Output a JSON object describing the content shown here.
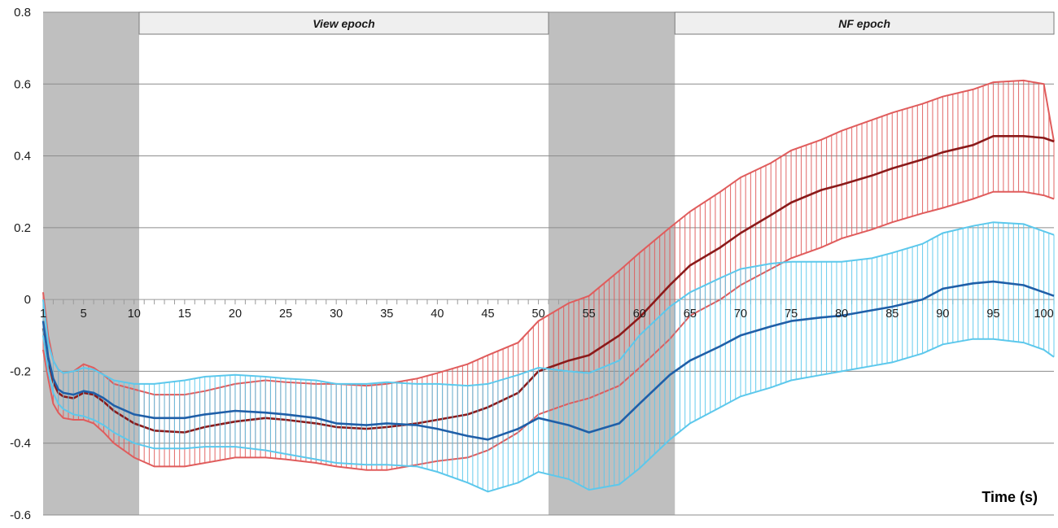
{
  "chart_data": {
    "type": "line",
    "title": "",
    "xlabel": "Time (s)",
    "ylabel": "",
    "xlim": [
      1,
      101
    ],
    "ylim": [
      -0.6,
      0.8
    ],
    "y_ticks": [
      "0.8",
      "0.6",
      "0.4",
      "0.2",
      "0",
      "-0.2",
      "-0.4",
      "-0.6"
    ],
    "x_ticks": [
      "1",
      "5",
      "10",
      "15",
      "20",
      "25",
      "30",
      "35",
      "40",
      "45",
      "50",
      "55",
      "60",
      "65",
      "70",
      "75",
      "80",
      "85",
      "90",
      "95",
      "100"
    ],
    "grid": "horizontal",
    "shaded_rest_periods": [
      [
        1,
        10.5
      ],
      [
        51,
        63.5
      ]
    ],
    "epochs": [
      {
        "label": "View epoch",
        "start": 10.5,
        "end": 51
      },
      {
        "label": "NF epoch",
        "start": 63.5,
        "end": 101
      }
    ],
    "error_bars": "vertical, every 0.5 s",
    "series": [
      {
        "color": "#8b1a1a",
        "band_color": "#e05c5c",
        "x": [
          1,
          1.5,
          2,
          2.5,
          3,
          4,
          5,
          6,
          7,
          8,
          10,
          12,
          15,
          17,
          20,
          23,
          25,
          28,
          30,
          33,
          35,
          38,
          40,
          43,
          45,
          48,
          50,
          53,
          55,
          58,
          60,
          63,
          65,
          68,
          70,
          73,
          75,
          78,
          80,
          83,
          85,
          88,
          90,
          93,
          95,
          98,
          100,
          101
        ],
        "mean": [
          -0.08,
          -0.17,
          -0.23,
          -0.26,
          -0.27,
          -0.275,
          -0.26,
          -0.265,
          -0.285,
          -0.31,
          -0.345,
          -0.365,
          -0.37,
          -0.355,
          -0.34,
          -0.33,
          -0.335,
          -0.345,
          -0.355,
          -0.36,
          -0.355,
          -0.345,
          -0.335,
          -0.32,
          -0.3,
          -0.26,
          -0.2,
          -0.17,
          -0.155,
          -0.1,
          -0.05,
          0.04,
          0.095,
          0.145,
          0.185,
          0.235,
          0.27,
          0.305,
          0.32,
          0.345,
          0.365,
          0.39,
          0.41,
          0.43,
          0.455,
          0.455,
          0.45,
          0.44
        ],
        "upper": [
          0.02,
          -0.1,
          -0.17,
          -0.195,
          -0.205,
          -0.2,
          -0.18,
          -0.19,
          -0.21,
          -0.235,
          -0.25,
          -0.265,
          -0.265,
          -0.255,
          -0.235,
          -0.225,
          -0.23,
          -0.235,
          -0.235,
          -0.24,
          -0.235,
          -0.22,
          -0.205,
          -0.18,
          -0.155,
          -0.12,
          -0.06,
          -0.01,
          0.01,
          0.08,
          0.13,
          0.2,
          0.245,
          0.3,
          0.34,
          0.38,
          0.415,
          0.445,
          0.47,
          0.5,
          0.52,
          0.545,
          0.565,
          0.585,
          0.605,
          0.61,
          0.6,
          0.44
        ],
        "lower": [
          -0.14,
          -0.22,
          -0.29,
          -0.315,
          -0.33,
          -0.335,
          -0.335,
          -0.345,
          -0.37,
          -0.4,
          -0.44,
          -0.465,
          -0.465,
          -0.455,
          -0.44,
          -0.44,
          -0.445,
          -0.455,
          -0.465,
          -0.475,
          -0.475,
          -0.46,
          -0.45,
          -0.44,
          -0.42,
          -0.37,
          -0.32,
          -0.29,
          -0.275,
          -0.24,
          -0.19,
          -0.11,
          -0.045,
          0.0,
          0.04,
          0.085,
          0.115,
          0.145,
          0.17,
          0.195,
          0.215,
          0.24,
          0.255,
          0.28,
          0.3,
          0.3,
          0.29,
          0.28
        ]
      },
      {
        "color": "#1f5fa8",
        "band_color": "#5cc8ec",
        "x": [
          1,
          1.5,
          2,
          2.5,
          3,
          4,
          5,
          6,
          7,
          8,
          10,
          12,
          15,
          17,
          20,
          23,
          25,
          28,
          30,
          33,
          35,
          38,
          40,
          43,
          45,
          48,
          50,
          53,
          55,
          58,
          60,
          63,
          65,
          68,
          70,
          73,
          75,
          78,
          80,
          83,
          85,
          88,
          90,
          93,
          95,
          98,
          100,
          101
        ],
        "mean": [
          -0.06,
          -0.16,
          -0.22,
          -0.25,
          -0.26,
          -0.265,
          -0.255,
          -0.26,
          -0.275,
          -0.295,
          -0.32,
          -0.33,
          -0.33,
          -0.32,
          -0.31,
          -0.315,
          -0.32,
          -0.33,
          -0.345,
          -0.35,
          -0.345,
          -0.35,
          -0.36,
          -0.38,
          -0.39,
          -0.36,
          -0.33,
          -0.35,
          -0.37,
          -0.345,
          -0.29,
          -0.21,
          -0.17,
          -0.13,
          -0.1,
          -0.075,
          -0.06,
          -0.05,
          -0.045,
          -0.03,
          -0.02,
          0.0,
          0.03,
          0.045,
          0.05,
          0.04,
          0.02,
          0.01
        ],
        "upper": [
          0.0,
          -0.12,
          -0.17,
          -0.195,
          -0.205,
          -0.2,
          -0.19,
          -0.195,
          -0.21,
          -0.225,
          -0.235,
          -0.235,
          -0.225,
          -0.215,
          -0.21,
          -0.215,
          -0.22,
          -0.225,
          -0.235,
          -0.235,
          -0.23,
          -0.235,
          -0.235,
          -0.24,
          -0.235,
          -0.21,
          -0.19,
          -0.2,
          -0.205,
          -0.17,
          -0.1,
          -0.02,
          0.02,
          0.06,
          0.085,
          0.1,
          0.105,
          0.105,
          0.105,
          0.115,
          0.13,
          0.155,
          0.185,
          0.205,
          0.215,
          0.21,
          0.19,
          0.18
        ],
        "lower": [
          -0.1,
          -0.2,
          -0.26,
          -0.29,
          -0.305,
          -0.32,
          -0.325,
          -0.335,
          -0.35,
          -0.37,
          -0.4,
          -0.415,
          -0.415,
          -0.41,
          -0.41,
          -0.42,
          -0.43,
          -0.445,
          -0.455,
          -0.46,
          -0.46,
          -0.465,
          -0.48,
          -0.51,
          -0.535,
          -0.51,
          -0.48,
          -0.5,
          -0.53,
          -0.515,
          -0.47,
          -0.39,
          -0.345,
          -0.3,
          -0.27,
          -0.245,
          -0.225,
          -0.21,
          -0.2,
          -0.185,
          -0.175,
          -0.15,
          -0.125,
          -0.11,
          -0.11,
          -0.12,
          -0.14,
          -0.16
        ]
      }
    ]
  }
}
